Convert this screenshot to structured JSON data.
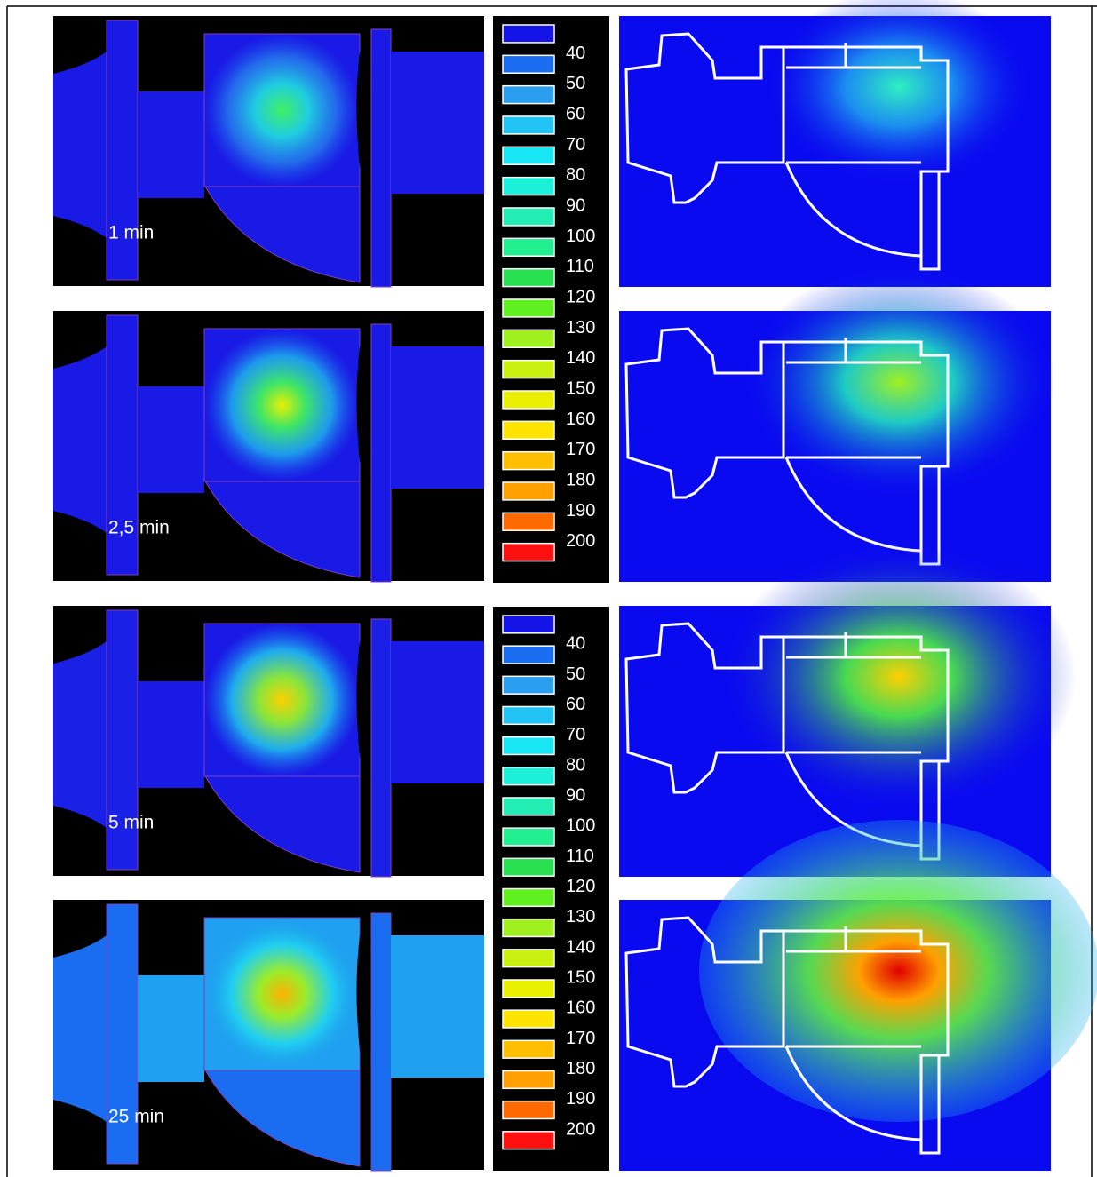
{
  "panels": [
    {
      "time": "1 min"
    },
    {
      "time": "2,5 min"
    },
    {
      "time": "5 min"
    },
    {
      "time": "25 min"
    }
  ],
  "legends": [
    {
      "labels": [
        40,
        50,
        60,
        70,
        80,
        90,
        100,
        110,
        120,
        130,
        140,
        150,
        160,
        170,
        180,
        190,
        200
      ]
    },
    {
      "labels": [
        40,
        50,
        60,
        70,
        80,
        90,
        100,
        110,
        120,
        130,
        140,
        150,
        160,
        170,
        180,
        190,
        200
      ]
    }
  ],
  "legend_colors": [
    "#1414e6",
    "#1a6cf0",
    "#2a9ff0",
    "#22c4f5",
    "#19e6f5",
    "#1cf0d8",
    "#22eeb4",
    "#22f090",
    "#28e050",
    "#60f020",
    "#a0f020",
    "#c8f010",
    "#e8f000",
    "#ffe400",
    "#ffbe00",
    "#ffa000",
    "#ff6a00",
    "#ff1010"
  ]
}
